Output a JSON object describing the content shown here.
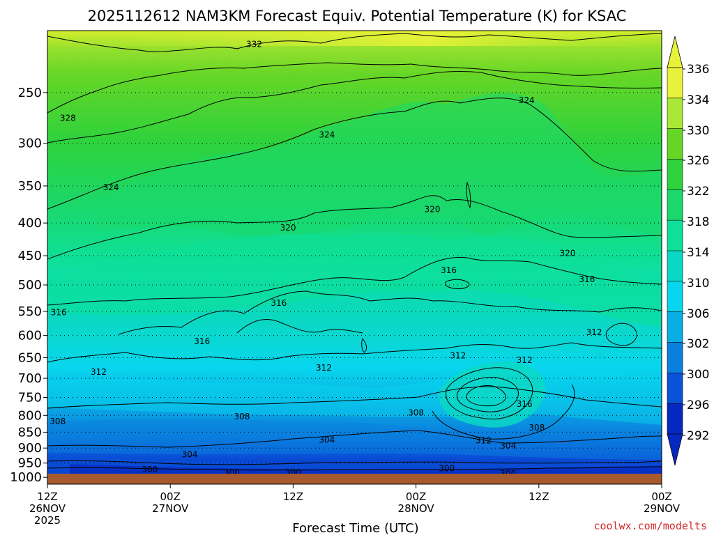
{
  "chart_data": {
    "type": "heatmap",
    "title": "2025112612 NAM3KM Forecast Equiv. Potential Temperature (K) for KSAC",
    "xlabel": "Forecast Time (UTC)",
    "ylabel": "",
    "x_ticks": [
      {
        "line1": "12Z",
        "line2": "26NOV",
        "line3": "2025",
        "hour": 0
      },
      {
        "line1": "00Z",
        "line2": "27NOV",
        "line3": "",
        "hour": 12
      },
      {
        "line1": "12Z",
        "line2": "",
        "line3": "",
        "hour": 24
      },
      {
        "line1": "00Z",
        "line2": "28NOV",
        "line3": "",
        "hour": 36
      },
      {
        "line1": "12Z",
        "line2": "",
        "line3": "",
        "hour": 48
      },
      {
        "line1": "00Z",
        "line2": "29NOV",
        "line3": "",
        "hour": 60
      }
    ],
    "xlim": [
      0,
      60
    ],
    "y_ticks": [
      250,
      300,
      350,
      400,
      450,
      500,
      550,
      600,
      650,
      700,
      750,
      800,
      850,
      900,
      950,
      1000
    ],
    "ylim": [
      200,
      1025
    ],
    "y_scale": "log",
    "y_direction": "inverted",
    "grid": "dotted horizontal",
    "colorbar_labels": [
      336,
      334,
      330,
      326,
      322,
      318,
      314,
      310,
      306,
      302,
      300,
      296,
      292
    ],
    "colorbar_bins": [
      {
        "lo": 334,
        "hi": 338,
        "color": "#e8f23a"
      },
      {
        "lo": 330,
        "hi": 334,
        "color": "#aae838"
      },
      {
        "lo": 326,
        "hi": 330,
        "color": "#66d626"
      },
      {
        "lo": 322,
        "hi": 326,
        "color": "#2ed23c"
      },
      {
        "lo": 318,
        "hi": 322,
        "color": "#1ad86c"
      },
      {
        "lo": 314,
        "hi": 318,
        "color": "#0ee09a"
      },
      {
        "lo": 310,
        "hi": 314,
        "color": "#0ad8c4"
      },
      {
        "lo": 306,
        "hi": 310,
        "color": "#08d6ee"
      },
      {
        "lo": 302,
        "hi": 306,
        "color": "#0aaee4"
      },
      {
        "lo": 298,
        "hi": 302,
        "color": "#0a80de"
      },
      {
        "lo": 294,
        "hi": 298,
        "color": "#0a52d8"
      },
      {
        "lo": 290,
        "hi": 294,
        "color": "#0628c2"
      }
    ],
    "contour_labels": [
      {
        "text": "332",
        "t": 20.2,
        "p": 210
      },
      {
        "text": "328",
        "t": 2.0,
        "p": 274
      },
      {
        "text": "324",
        "t": 6.2,
        "p": 352
      },
      {
        "text": "324",
        "t": 27.3,
        "p": 291
      },
      {
        "text": "324",
        "t": 46.8,
        "p": 257
      },
      {
        "text": "320",
        "t": 23.5,
        "p": 407
      },
      {
        "text": "320",
        "t": 37.6,
        "p": 381
      },
      {
        "text": "320",
        "t": 50.8,
        "p": 446
      },
      {
        "text": "316",
        "t": 1.1,
        "p": 552
      },
      {
        "text": "316",
        "t": 22.6,
        "p": 534
      },
      {
        "text": "316",
        "t": 39.2,
        "p": 474
      },
      {
        "text": "316",
        "t": 52.7,
        "p": 490
      },
      {
        "text": "316",
        "t": 15.1,
        "p": 613
      },
      {
        "text": "316",
        "t": 46.6,
        "p": 768
      },
      {
        "text": "312",
        "t": 5.0,
        "p": 684
      },
      {
        "text": "312",
        "t": 27.0,
        "p": 674
      },
      {
        "text": "312",
        "t": 40.1,
        "p": 645
      },
      {
        "text": "312",
        "t": 46.6,
        "p": 656
      },
      {
        "text": "312",
        "t": 53.4,
        "p": 593
      },
      {
        "text": "312",
        "t": 42.6,
        "p": 876
      },
      {
        "text": "308",
        "t": 1.0,
        "p": 818
      },
      {
        "text": "308",
        "t": 19.0,
        "p": 803
      },
      {
        "text": "308",
        "t": 36.0,
        "p": 792
      },
      {
        "text": "308",
        "t": 47.8,
        "p": 836
      },
      {
        "text": "304",
        "t": 27.3,
        "p": 874
      },
      {
        "text": "304",
        "t": 13.9,
        "p": 921
      },
      {
        "text": "304",
        "t": 45.0,
        "p": 893
      },
      {
        "text": "300",
        "t": 10.0,
        "p": 972
      },
      {
        "text": "300",
        "t": 18.0,
        "p": 983
      },
      {
        "text": "300",
        "t": 24.0,
        "p": 983
      },
      {
        "text": "300",
        "t": 39.0,
        "p": 969
      },
      {
        "text": "300",
        "t": 45.0,
        "p": 987
      }
    ]
  },
  "credit": "coolwx.com/modelts",
  "colors": {
    "ground": "#a65a2e",
    "credit": "#d22a2a"
  }
}
